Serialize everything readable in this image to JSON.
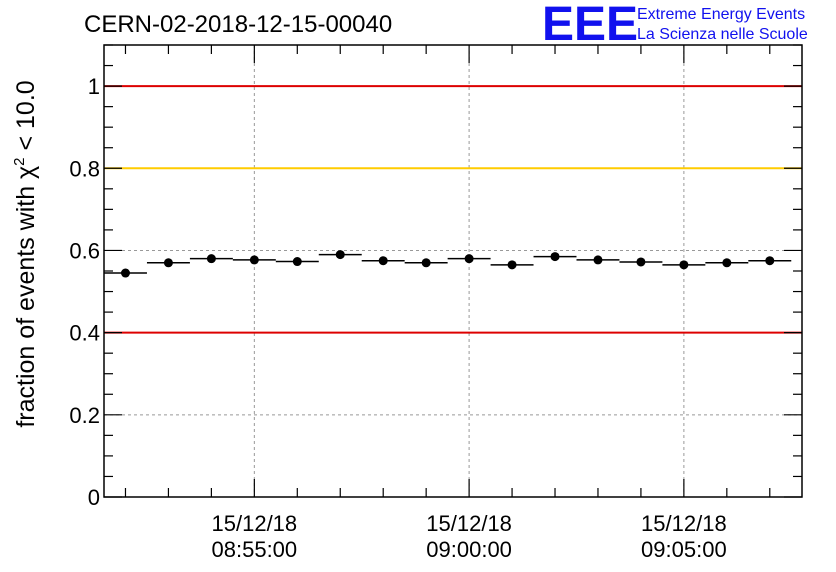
{
  "logo": {
    "mark": "EEE",
    "line1": "Extreme Energy Events",
    "line2": "La Scienza nelle Scuole",
    "color": "#1111ee"
  },
  "chart_data": {
    "type": "scatter",
    "title": "CERN-02-2018-12-15-00040",
    "xlabel": "",
    "ylabel": "fraction of events with χ² < 10.0",
    "ylabel_parts": {
      "pre": "fraction of events with ",
      "sym": "χ",
      "sup": "2",
      "post": " < 10.0"
    },
    "ylim": [
      0,
      1.1
    ],
    "xlim_minutes": [
      -3.5,
      12.75
    ],
    "y_ticks": [
      0,
      0.2,
      0.4,
      0.6,
      0.8,
      1
    ],
    "y_tick_labels": [
      "0",
      "0.2",
      "0.4",
      "0.6",
      "0.8",
      "1"
    ],
    "x_ticks_minutes": [
      0,
      5,
      10
    ],
    "x_tick_labels": [
      {
        "date": "15/12/18",
        "time": "08:55:00"
      },
      {
        "date": "15/12/18",
        "time": "09:00:00"
      },
      {
        "date": "15/12/18",
        "time": "09:05:00"
      }
    ],
    "grid": true,
    "reference_lines": [
      {
        "y": 1.0,
        "color": "#dd0000"
      },
      {
        "y": 0.8,
        "color": "#ffcc00"
      },
      {
        "y": 0.4,
        "color": "#dd0000"
      }
    ],
    "bin_width_minutes": 1,
    "x_minutes": [
      -3,
      -2,
      -1,
      0,
      1,
      2,
      3,
      4,
      5,
      6,
      7,
      8,
      9,
      10,
      11,
      12
    ],
    "values": [
      0.545,
      0.57,
      0.58,
      0.577,
      0.573,
      0.59,
      0.575,
      0.57,
      0.58,
      0.565,
      0.585,
      0.577,
      0.572,
      0.565,
      0.57,
      0.575
    ],
    "marker_color": "#000000"
  }
}
